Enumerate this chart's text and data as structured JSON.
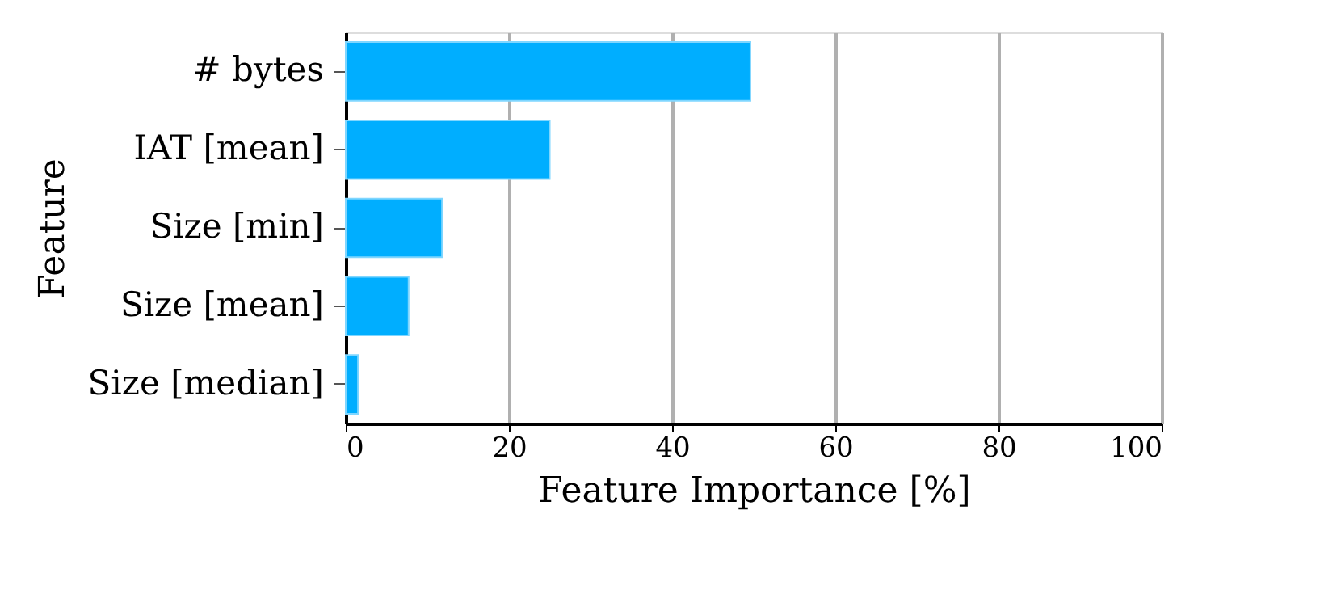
{
  "chart_data": {
    "type": "bar",
    "orientation": "horizontal",
    "categories": [
      "# bytes",
      "IAT [mean]",
      "Size [min]",
      "Size [mean]",
      "Size [median]"
    ],
    "values": [
      49.6,
      25.0,
      11.8,
      7.7,
      1.5
    ],
    "color": "#00aeff",
    "xlabel": "Feature Importance [%]",
    "ylabel": "Feature",
    "xlim": [
      0,
      100
    ],
    "xticks": [
      0,
      20,
      40,
      60,
      80,
      100
    ],
    "grid": "x"
  }
}
